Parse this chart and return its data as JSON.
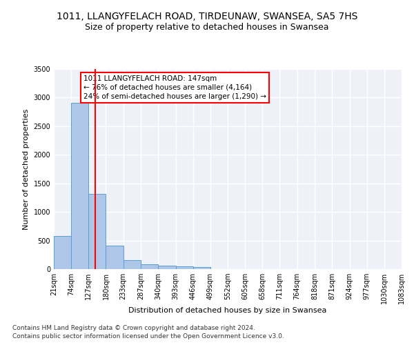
{
  "title": "1011, LLANGYFELACH ROAD, TIRDEUNAW, SWANSEA, SA5 7HS",
  "subtitle": "Size of property relative to detached houses in Swansea",
  "xlabel": "Distribution of detached houses by size in Swansea",
  "ylabel": "Number of detached properties",
  "bar_color": "#aec6e8",
  "bar_edgecolor": "#5a9fd4",
  "red_line_x": 147,
  "annotation_line1": "1011 LLANGYFELACH ROAD: 147sqm",
  "annotation_line2": "← 76% of detached houses are smaller (4,164)",
  "annotation_line3": "24% of semi-detached houses are larger (1,290) →",
  "footnote1": "Contains HM Land Registry data © Crown copyright and database right 2024.",
  "footnote2": "Contains public sector information licensed under the Open Government Licence v3.0.",
  "bin_edges": [
    21,
    74,
    127,
    180,
    233,
    287,
    340,
    393,
    446,
    499,
    552,
    605,
    658,
    711,
    764,
    818,
    871,
    924,
    977,
    1030,
    1083
  ],
  "bar_heights": [
    575,
    2910,
    1315,
    415,
    155,
    80,
    58,
    50,
    40,
    0,
    0,
    0,
    0,
    0,
    0,
    0,
    0,
    0,
    0,
    0
  ],
  "ylim": [
    0,
    3500
  ],
  "yticks": [
    0,
    500,
    1000,
    1500,
    2000,
    2500,
    3000,
    3500
  ],
  "background_color": "#eef2f8",
  "grid_color": "#ffffff",
  "title_fontsize": 10,
  "subtitle_fontsize": 9,
  "axis_label_fontsize": 8,
  "tick_fontsize": 7,
  "annotation_fontsize": 7.5,
  "footnote_fontsize": 6.5
}
